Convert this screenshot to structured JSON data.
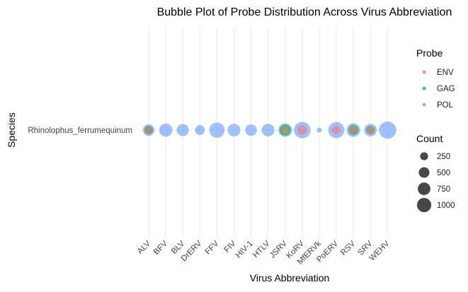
{
  "chart_data": {
    "type": "scatter",
    "title": "Bubble Plot of Probe Distribution Across Virus Abbreviation",
    "xlabel": "Virus Abbreviation",
    "ylabel": "Species",
    "categories": [
      "ALV",
      "BFV",
      "BLV",
      "DrERV",
      "FFV",
      "FIV",
      "HIV-1",
      "HTLV",
      "JSRV",
      "KoRV",
      "MfERVk",
      "PoERV",
      "RSV",
      "SRV",
      "WEHV"
    ],
    "y_categories": [
      "Rhinolophus_ferrumequinum"
    ],
    "grid": true,
    "legend_placement": "right",
    "probe_legend": {
      "title": "Probe",
      "entries": [
        {
          "label": "ENV",
          "color": "#F8766D"
        },
        {
          "label": "GAG",
          "color": "#00BA38"
        },
        {
          "label": "POL",
          "color": "#619CFF"
        }
      ]
    },
    "size_legend": {
      "title": "Count",
      "values": [
        250,
        500,
        750,
        1000
      ],
      "labels": [
        "250",
        "500",
        "750",
        "1000"
      ]
    },
    "series": [
      {
        "name": "POL",
        "color": "#619CFF",
        "values": [
          450,
          600,
          500,
          300,
          850,
          550,
          450,
          550,
          650,
          1000,
          50,
          950,
          650,
          550,
          1100
        ]
      },
      {
        "name": "GAG",
        "color": "#00BA38",
        "values": [
          200,
          null,
          null,
          null,
          null,
          null,
          null,
          null,
          400,
          null,
          null,
          null,
          300,
          200,
          null
        ]
      },
      {
        "name": "ENV",
        "color": "#F8766D",
        "values": [
          150,
          null,
          null,
          null,
          null,
          null,
          null,
          null,
          150,
          250,
          null,
          200,
          150,
          150,
          null
        ]
      }
    ]
  }
}
